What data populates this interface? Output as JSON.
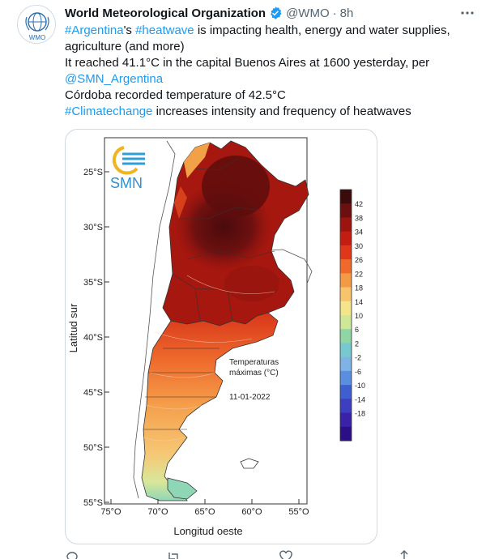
{
  "tweet": {
    "author_name": "World Meteorological Organization",
    "handle": "@WMO",
    "separator": "·",
    "time": "8h",
    "avatar_label": "WMO",
    "more_icon": "more-horizontal-icon",
    "verified_icon": "verified-badge-icon",
    "verified_color": "#1d9bf0",
    "lines": {
      "l1_tag1": "#Argentina",
      "l1_mid": "'s ",
      "l1_tag2": "#heatwave",
      "l1_rest": " is impacting health, energy and water supplies, agriculture (and more)",
      "l2": "It reached 41.1°C in the capital Buenos Aires at 1600 yesterday, per",
      "l3_mention": "@SMN_Argentina",
      "l4": "Córdoba recorded temperature of 42.5°C",
      "l5_tag": "#Climatechange",
      "l5_rest": " increases intensity and frequency of heatwaves"
    },
    "link_color": "#1d9bf0"
  },
  "media": {
    "logo_text": "SMN",
    "ylabel": "Latitud sur",
    "xlabel": "Longitud oeste",
    "lat_ticks": [
      "25°S",
      "30°S",
      "35°S",
      "40°S",
      "45°S",
      "50°S",
      "55°S"
    ],
    "lon_ticks": [
      "75°O",
      "70°O",
      "65°O",
      "60°O",
      "55°O"
    ],
    "annotation_line1": "Temperaturas",
    "annotation_line2": "máximas (°C)",
    "date": "11-01-2022",
    "colorbar_labels": [
      "42",
      "38",
      "34",
      "30",
      "26",
      "22",
      "18",
      "14",
      "10",
      "6",
      "2",
      "-2",
      "-6",
      "-10",
      "-14",
      "-18"
    ],
    "colorbar_colors": [
      "#3b0a0a",
      "#6b0f0f",
      "#9c1410",
      "#c21d10",
      "#e0361a",
      "#ef6a2a",
      "#f39a45",
      "#f7c46b",
      "#f4e48a",
      "#cfe898",
      "#8fd6a4",
      "#78c8cf",
      "#7fb3e6",
      "#5a8ee0",
      "#3f5fd1",
      "#3d3ec0",
      "#3a22a8",
      "#2a0f86"
    ]
  },
  "actions": [
    "reply-icon",
    "retweet-icon",
    "like-icon",
    "share-icon"
  ]
}
